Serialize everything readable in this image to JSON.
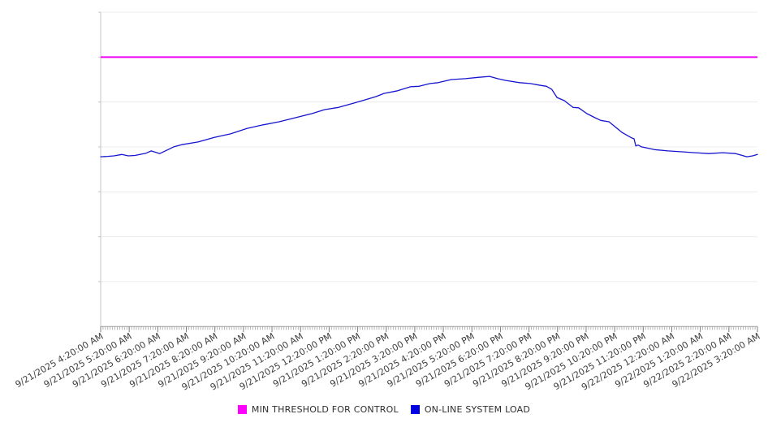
{
  "colors": {
    "background": "#FFFFFF",
    "gridline": "#ECECEC",
    "y_axis_line": "#C4C4C4",
    "x_axis_line": "#9A9A9A",
    "minor_tick": "#A8A8A8",
    "hour_tick": "#7F7F7F",
    "axis_label_text": "#3F3F3F",
    "legend_text": "#2E2E2E",
    "threshold_color": "#F000F0",
    "load_color": "#1515CF"
  },
  "chart_data": {
    "type": "line",
    "title": "",
    "xlabel": "",
    "ylabel": "",
    "ylim": [
      0,
      7
    ],
    "y_axis_labels_visible": false,
    "gridlines": "horizontal, 7 intervals, unlabeled",
    "legend_position": "bottom-center",
    "x_span_hours": 23,
    "x_minor_tick_interval_minutes": 5,
    "x_tick_labels": [
      "9/21/2025 4:20:00 AM",
      "9/21/2025 5:20:00 AM",
      "9/21/2025 6:20:00 AM",
      "9/21/2025 7:20:00 AM",
      "9/21/2025 8:20:00 AM",
      "9/21/2025 9:20:00 AM",
      "9/21/2025 10:20:00 AM",
      "9/21/2025 11:20:00 AM",
      "9/21/2025 12:20:00 PM",
      "9/21/2025 1:20:00 PM",
      "9/21/2025 2:20:00 PM",
      "9/21/2025 3:20:00 PM",
      "9/21/2025 4:20:00 PM",
      "9/21/2025 5:20:00 PM",
      "9/21/2025 6:20:00 PM",
      "9/21/2025 7:20:00 PM",
      "9/21/2025 8:20:00 PM",
      "9/21/2025 9:20:00 PM",
      "9/21/2025 10:20:00 PM",
      "9/21/2025 11:20:00 PM",
      "9/22/2025 12:20:00 AM",
      "9/22/2025 1:20:00 AM",
      "9/22/2025 2:20:00 AM",
      "9/22/2025 3:20:00 AM"
    ],
    "series": [
      {
        "name": "MIN THRESHOLD FOR CONTROL",
        "color": "#FF00FF",
        "kind": "horizontal-threshold",
        "value": 6.0,
        "stroke_width": 2
      },
      {
        "name": "ON-LINE SYSTEM LOAD",
        "color": "#0000E0",
        "kind": "line",
        "stroke_width": 1.3,
        "units": "unlabeled y-axis, gridline units (0 = x-axis, 7 = top line)",
        "points": [
          [
            0.0,
            3.78
          ],
          [
            0.25,
            3.79
          ],
          [
            0.46,
            3.8
          ],
          [
            0.74,
            3.83
          ],
          [
            0.97,
            3.8
          ],
          [
            1.2,
            3.81
          ],
          [
            1.59,
            3.86
          ],
          [
            1.77,
            3.91
          ],
          [
            2.07,
            3.85
          ],
          [
            2.56,
            4.0
          ],
          [
            2.84,
            4.05
          ],
          [
            3.41,
            4.11
          ],
          [
            3.98,
            4.21
          ],
          [
            4.55,
            4.29
          ],
          [
            5.12,
            4.41
          ],
          [
            5.69,
            4.49
          ],
          [
            6.25,
            4.56
          ],
          [
            6.82,
            4.65
          ],
          [
            7.39,
            4.74
          ],
          [
            7.85,
            4.83
          ],
          [
            8.33,
            4.88
          ],
          [
            8.79,
            4.96
          ],
          [
            9.27,
            5.05
          ],
          [
            9.64,
            5.12
          ],
          [
            9.92,
            5.19
          ],
          [
            10.4,
            5.25
          ],
          [
            10.86,
            5.34
          ],
          [
            11.15,
            5.35
          ],
          [
            11.54,
            5.41
          ],
          [
            11.82,
            5.43
          ],
          [
            12.28,
            5.5
          ],
          [
            12.77,
            5.52
          ],
          [
            13.25,
            5.55
          ],
          [
            13.62,
            5.57
          ],
          [
            13.9,
            5.52
          ],
          [
            14.19,
            5.48
          ],
          [
            14.67,
            5.43
          ],
          [
            15.04,
            5.41
          ],
          [
            15.41,
            5.37
          ],
          [
            15.61,
            5.35
          ],
          [
            15.8,
            5.28
          ],
          [
            15.98,
            5.1
          ],
          [
            16.24,
            5.03
          ],
          [
            16.54,
            4.88
          ],
          [
            16.74,
            4.87
          ],
          [
            17.03,
            4.74
          ],
          [
            17.31,
            4.65
          ],
          [
            17.51,
            4.59
          ],
          [
            17.8,
            4.56
          ],
          [
            17.97,
            4.47
          ],
          [
            18.26,
            4.32
          ],
          [
            18.45,
            4.25
          ],
          [
            18.6,
            4.2
          ],
          [
            18.68,
            4.18
          ],
          [
            18.74,
            4.02
          ],
          [
            18.82,
            4.04
          ],
          [
            18.94,
            4.0
          ],
          [
            19.39,
            3.94
          ],
          [
            19.87,
            3.91
          ],
          [
            20.36,
            3.89
          ],
          [
            20.81,
            3.87
          ],
          [
            21.3,
            3.85
          ],
          [
            21.78,
            3.87
          ],
          [
            22.24,
            3.85
          ],
          [
            22.63,
            3.78
          ],
          [
            22.83,
            3.8
          ],
          [
            23.0,
            3.83
          ]
        ]
      }
    ]
  }
}
